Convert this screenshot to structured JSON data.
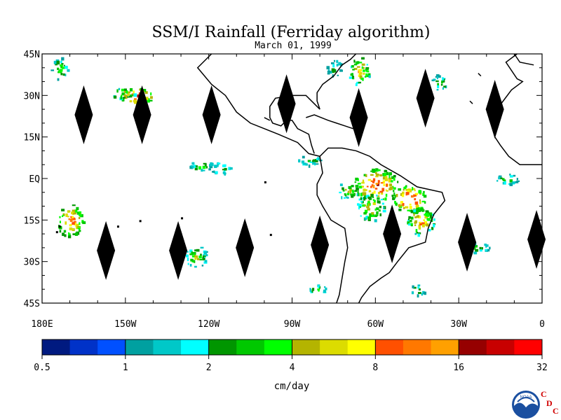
{
  "title": "SSM/I Rainfall (Ferriday algorithm)",
  "subtitle": "March 01, 1999",
  "map": {
    "lon_range": [
      180,
      360
    ],
    "lat_range": [
      -45,
      45
    ],
    "lat_ticks": [
      {
        "value": 45,
        "label": "45N"
      },
      {
        "value": 30,
        "label": "30N"
      },
      {
        "value": 15,
        "label": "15N"
      },
      {
        "value": 0,
        "label": "EQ"
      },
      {
        "value": -15,
        "label": "15S"
      },
      {
        "value": -30,
        "label": "30S"
      },
      {
        "value": -45,
        "label": "45S"
      }
    ],
    "lon_ticks": [
      {
        "value": 180,
        "label": "180E"
      },
      {
        "value": 210,
        "label": "150W"
      },
      {
        "value": 240,
        "label": "120W"
      },
      {
        "value": 270,
        "label": "90W"
      },
      {
        "value": 300,
        "label": "60W"
      },
      {
        "value": 330,
        "label": "30W"
      },
      {
        "value": 360,
        "label": "0"
      }
    ],
    "coastline_color": "#000000"
  },
  "colorbar": {
    "unit_label": "cm/day",
    "colors": [
      "#001a80",
      "#0032c8",
      "#0050ff",
      "#00a0a0",
      "#00c8c8",
      "#00ffff",
      "#009600",
      "#00c800",
      "#00ff00",
      "#b4b400",
      "#dcdc00",
      "#ffff00",
      "#ff5000",
      "#ff7800",
      "#ffa000",
      "#960000",
      "#c80000",
      "#ff0000"
    ],
    "labels": [
      "0.5",
      "1",
      "2",
      "4",
      "8",
      "16",
      "32"
    ]
  },
  "logo": {
    "name": "noaa-logo",
    "text": "NOAA"
  },
  "cdc_mark": [
    "C",
    "D",
    "C"
  ],
  "swath_gaps": [
    {
      "lon": 195,
      "lat": 23
    },
    {
      "lon": 216,
      "lat": 23
    },
    {
      "lon": 241,
      "lat": 23
    },
    {
      "lon": 268,
      "lat": 27
    },
    {
      "lon": 294,
      "lat": 22
    },
    {
      "lon": 318,
      "lat": 29
    },
    {
      "lon": 343,
      "lat": 25
    },
    {
      "lon": 203,
      "lat": -26
    },
    {
      "lon": 229,
      "lat": -26
    },
    {
      "lon": 253,
      "lat": -25
    },
    {
      "lon": 280,
      "lat": -24
    },
    {
      "lon": 306,
      "lat": -20
    },
    {
      "lon": 333,
      "lat": -23
    },
    {
      "lon": 358,
      "lat": -22
    }
  ],
  "rain_patches": [
    {
      "lon": 214,
      "lat": 30,
      "w": 6,
      "h": 3,
      "level": 16
    },
    {
      "lon": 209,
      "lat": 31,
      "w": 4,
      "h": 2,
      "level": 12
    },
    {
      "lon": 190,
      "lat": -15,
      "w": 5,
      "h": 6,
      "level": 14
    },
    {
      "lon": 237,
      "lat": 5,
      "w": 4,
      "h": 2,
      "level": 9
    },
    {
      "lon": 300,
      "lat": -2,
      "w": 8,
      "h": 6,
      "level": 15
    },
    {
      "lon": 312,
      "lat": -7,
      "w": 6,
      "h": 5,
      "level": 16
    },
    {
      "lon": 298,
      "lat": -10,
      "w": 5,
      "h": 5,
      "level": 11
    },
    {
      "lon": 290,
      "lat": -4,
      "w": 4,
      "h": 3,
      "level": 10
    },
    {
      "lon": 316,
      "lat": -15,
      "w": 5,
      "h": 5,
      "level": 13
    },
    {
      "lon": 294,
      "lat": 39,
      "w": 4,
      "h": 5,
      "level": 12
    },
    {
      "lon": 285,
      "lat": 40,
      "w": 3,
      "h": 3,
      "level": 7
    },
    {
      "lon": 315,
      "lat": -40,
      "w": 3,
      "h": 2,
      "level": 8
    },
    {
      "lon": 279,
      "lat": -40,
      "w": 3,
      "h": 2,
      "level": 9
    },
    {
      "lon": 235,
      "lat": -28,
      "w": 4,
      "h": 4,
      "level": 10
    },
    {
      "lon": 336,
      "lat": -25,
      "w": 5,
      "h": 2,
      "level": 8
    },
    {
      "lon": 347,
      "lat": 0,
      "w": 4,
      "h": 2,
      "level": 8
    },
    {
      "lon": 244,
      "lat": 4,
      "w": 4,
      "h": 2,
      "level": 8
    },
    {
      "lon": 276,
      "lat": 7,
      "w": 4,
      "h": 2,
      "level": 8
    },
    {
      "lon": 186,
      "lat": 40,
      "w": 3,
      "h": 4,
      "level": 9
    },
    {
      "lon": 323,
      "lat": 35,
      "w": 3,
      "h": 3,
      "level": 8
    }
  ]
}
